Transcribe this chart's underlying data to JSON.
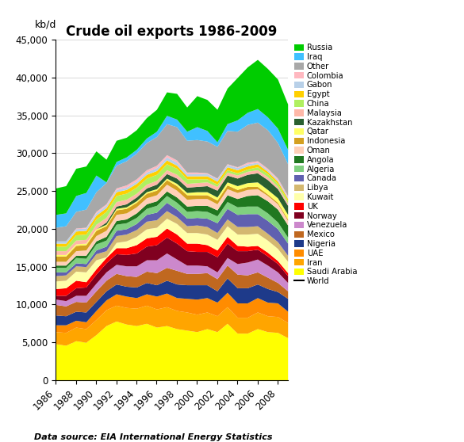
{
  "title": "Crude oil exports 1986-2009",
  "ylabel": "kb/d",
  "xlabel_note": "Data source: EIA International Energy Statistics",
  "years": [
    1986,
    1987,
    1988,
    1989,
    1990,
    1991,
    1992,
    1993,
    1994,
    1995,
    1996,
    1997,
    1998,
    1999,
    2000,
    2001,
    2002,
    2003,
    2004,
    2005,
    2006,
    2007,
    2008,
    2009
  ],
  "series": {
    "Saudi Arabia": {
      "color": "#FFFF00",
      "data": [
        4800,
        4600,
        5200,
        5000,
        6000,
        7200,
        7800,
        7400,
        7200,
        7500,
        7000,
        7200,
        6800,
        6600,
        6400,
        6800,
        6400,
        7500,
        6200,
        6200,
        6800,
        6400,
        6300,
        5600
      ]
    },
    "Iran": {
      "color": "#FFA500",
      "data": [
        1600,
        1700,
        1800,
        1800,
        2000,
        2100,
        2100,
        2200,
        2300,
        2400,
        2400,
        2500,
        2400,
        2400,
        2300,
        2200,
        2100,
        2200,
        2100,
        2100,
        2200,
        2100,
        2100,
        2000
      ]
    },
    "UAE": {
      "color": "#FF8C00",
      "data": [
        900,
        1000,
        900,
        900,
        1200,
        1300,
        1500,
        1500,
        1400,
        1500,
        1700,
        1800,
        1700,
        1800,
        2000,
        1900,
        1800,
        1900,
        1900,
        1900,
        1900,
        1800,
        1800,
        1500
      ]
    },
    "Nigeria": {
      "color": "#1E3A8A",
      "data": [
        1300,
        1200,
        1200,
        1300,
        1200,
        1200,
        1300,
        1300,
        1400,
        1500,
        1500,
        1700,
        1800,
        1800,
        1900,
        1700,
        1500,
        1900,
        2000,
        2000,
        1800,
        1800,
        1500,
        1700
      ]
    },
    "Mexico": {
      "color": "#C06820",
      "data": [
        1400,
        1300,
        1300,
        1300,
        1400,
        1400,
        1400,
        1400,
        1400,
        1500,
        1600,
        1700,
        1800,
        1500,
        1500,
        1600,
        1600,
        1700,
        1800,
        1700,
        1600,
        1500,
        1200,
        1000
      ]
    },
    "Venezuela": {
      "color": "#CC88CC",
      "data": [
        700,
        700,
        800,
        900,
        1000,
        1100,
        1200,
        1300,
        1400,
        1500,
        1700,
        1900,
        1500,
        1100,
        1100,
        900,
        900,
        1000,
        1400,
        1700,
        1700,
        1600,
        1400,
        1100
      ]
    },
    "Norway": {
      "color": "#800020",
      "data": [
        500,
        700,
        1000,
        1100,
        1200,
        1200,
        1400,
        1500,
        1700,
        1800,
        2000,
        2100,
        2100,
        1900,
        1800,
        1900,
        2000,
        1900,
        1700,
        1500,
        1300,
        1200,
        1100,
        900
      ]
    },
    "UK": {
      "color": "#FF0000",
      "data": [
        900,
        1000,
        1000,
        700,
        700,
        700,
        800,
        900,
        1100,
        1100,
        1100,
        1200,
        1200,
        1000,
        1100,
        900,
        900,
        900,
        700,
        600,
        500,
        500,
        400,
        400
      ]
    },
    "Kuwait": {
      "color": "#FFFFAA",
      "data": [
        1000,
        1000,
        1200,
        1300,
        1200,
        100,
        700,
        900,
        1100,
        1200,
        1200,
        1300,
        1400,
        1400,
        1400,
        1400,
        1400,
        1400,
        1500,
        1600,
        1600,
        1600,
        1600,
        1500
      ]
    },
    "Libya": {
      "color": "#D4B870",
      "data": [
        700,
        700,
        700,
        700,
        800,
        800,
        900,
        900,
        900,
        1000,
        1000,
        1000,
        900,
        900,
        1000,
        1000,
        900,
        900,
        1000,
        1000,
        1000,
        900,
        900,
        800
      ]
    },
    "Canada": {
      "color": "#6060B0",
      "data": [
        500,
        400,
        400,
        400,
        500,
        600,
        700,
        700,
        800,
        900,
        1000,
        1100,
        1000,
        1000,
        1000,
        1100,
        1300,
        1400,
        1600,
        1700,
        1600,
        1700,
        1700,
        1600
      ]
    },
    "Algeria": {
      "color": "#80D080",
      "data": [
        600,
        600,
        700,
        700,
        800,
        800,
        800,
        800,
        800,
        800,
        900,
        900,
        900,
        900,
        900,
        900,
        900,
        900,
        1000,
        1000,
        1000,
        1000,
        900,
        800
      ]
    },
    "Angola": {
      "color": "#207820",
      "data": [
        300,
        300,
        300,
        400,
        400,
        500,
        500,
        500,
        600,
        600,
        600,
        600,
        700,
        700,
        700,
        800,
        800,
        900,
        1100,
        1400,
        1500,
        1600,
        1700,
        1600
      ]
    },
    "Oman": {
      "color": "#FFD0B8",
      "data": [
        500,
        500,
        600,
        700,
        700,
        800,
        800,
        800,
        800,
        800,
        800,
        900,
        900,
        900,
        900,
        900,
        800,
        800,
        800,
        800,
        800,
        700,
        700,
        600
      ]
    },
    "Indonesia": {
      "color": "#D4A020",
      "data": [
        700,
        700,
        700,
        700,
        700,
        600,
        600,
        600,
        600,
        600,
        600,
        600,
        600,
        600,
        500,
        500,
        500,
        500,
        400,
        400,
        300,
        200,
        200,
        200
      ]
    },
    "Qatar": {
      "color": "#FFFF66",
      "data": [
        200,
        200,
        200,
        200,
        200,
        200,
        200,
        200,
        200,
        200,
        200,
        200,
        300,
        300,
        400,
        400,
        400,
        400,
        500,
        500,
        600,
        600,
        600,
        600
      ]
    },
    "Kazakhstan": {
      "color": "#2A6030",
      "data": [
        0,
        0,
        0,
        0,
        0,
        300,
        300,
        400,
        500,
        500,
        600,
        600,
        700,
        700,
        700,
        800,
        900,
        900,
        1000,
        1100,
        1200,
        1300,
        1200,
        1200
      ]
    },
    "Malaysia": {
      "color": "#FFB8A8",
      "data": [
        500,
        500,
        500,
        500,
        600,
        600,
        600,
        600,
        500,
        500,
        500,
        500,
        500,
        500,
        500,
        500,
        500,
        400,
        400,
        400,
        400,
        400,
        300,
        300
      ]
    },
    "China": {
      "color": "#B0F060",
      "data": [
        600,
        600,
        700,
        700,
        700,
        800,
        800,
        800,
        800,
        800,
        800,
        800,
        800,
        600,
        500,
        400,
        300,
        300,
        300,
        300,
        400,
        400,
        400,
        300
      ]
    },
    "Egypt": {
      "color": "#FFD000",
      "data": [
        400,
        400,
        500,
        500,
        500,
        500,
        500,
        500,
        500,
        500,
        500,
        500,
        400,
        400,
        400,
        400,
        400,
        400,
        400,
        400,
        400,
        300,
        300,
        300
      ]
    },
    "Gabon": {
      "color": "#B8D0E8",
      "data": [
        300,
        300,
        300,
        300,
        300,
        300,
        300,
        300,
        300,
        300,
        400,
        400,
        400,
        300,
        300,
        300,
        300,
        300,
        300,
        300,
        200,
        200,
        200,
        200
      ]
    },
    "Colombia": {
      "color": "#FFB8C0",
      "data": [
        0,
        0,
        100,
        100,
        200,
        200,
        200,
        300,
        300,
        300,
        300,
        300,
        300,
        200,
        200,
        100,
        100,
        100,
        100,
        200,
        200,
        200,
        200,
        200
      ]
    },
    "Other": {
      "color": "#A8A8A8",
      "data": [
        1800,
        2000,
        2200,
        2400,
        2600,
        2800,
        3000,
        3200,
        3400,
        3600,
        3800,
        4100,
        4400,
        4200,
        4300,
        4200,
        4200,
        4400,
        4700,
        5000,
        5100,
        5100,
        4700,
        4200
      ]
    },
    "Iraq": {
      "color": "#40C0FF",
      "data": [
        1700,
        1700,
        2100,
        2200,
        2200,
        100,
        500,
        500,
        500,
        600,
        700,
        1100,
        1000,
        1200,
        1700,
        1400,
        600,
        900,
        1500,
        1600,
        1800,
        1700,
        1900,
        1900
      ]
    },
    "Russia": {
      "color": "#00CC00",
      "data": [
        3500,
        3600,
        3600,
        3500,
        3200,
        3000,
        2800,
        2600,
        2600,
        2700,
        2900,
        3100,
        3400,
        3200,
        4100,
        4100,
        4300,
        4700,
        5600,
        6000,
        6500,
        6400,
        6500,
        6000
      ]
    }
  },
  "figsize": [
    5.85,
    5.58
  ],
  "dpi": 100,
  "ylim": [
    0,
    45000
  ],
  "yticks": [
    0,
    5000,
    10000,
    15000,
    20000,
    25000,
    30000,
    35000,
    40000,
    45000
  ],
  "xticks": [
    1986,
    1988,
    1990,
    1992,
    1994,
    1996,
    1998,
    2000,
    2002,
    2004,
    2006,
    2008
  ]
}
